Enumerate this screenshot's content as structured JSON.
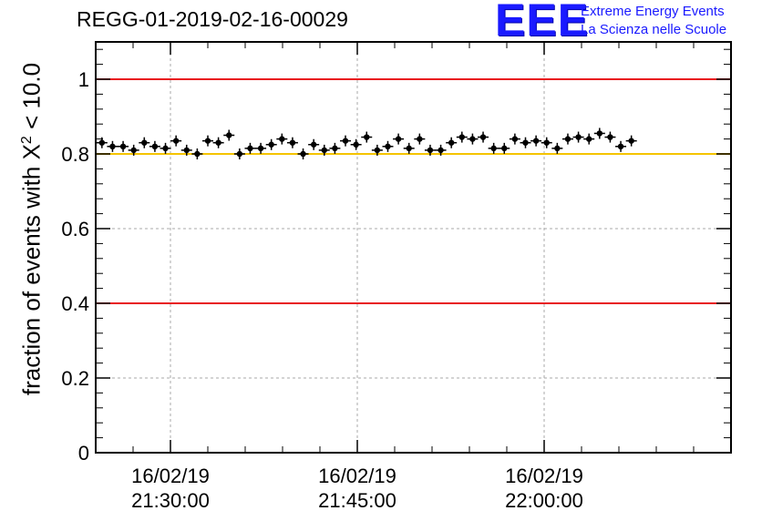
{
  "title": "REGG-01-2019-02-16-00029",
  "logo": {
    "mark": "EEE",
    "line1": "Extreme Energy Events",
    "line2": "La Scienza nelle Scuole"
  },
  "chart_data": {
    "type": "scatter",
    "ylabel_prefix": "fraction of events with X",
    "ylabel_sup": "2",
    "ylabel_suffix": " < 10.0",
    "ylim": [
      0,
      1.1
    ],
    "yticks": [
      0,
      0.2,
      0.4,
      0.6,
      0.8,
      1
    ],
    "ytick_labels": [
      "0",
      "0.2",
      "0.4",
      "0.6",
      "0.8",
      "1"
    ],
    "xlim": [
      "16/02/19 21:24:00",
      "16/02/19 22:15:00"
    ],
    "xticks": [
      {
        "date": "16/02/19",
        "time": "21:30:00"
      },
      {
        "date": "16/02/19",
        "time": "21:45:00"
      },
      {
        "date": "16/02/19",
        "time": "22:00:00"
      }
    ],
    "grid": true,
    "reference_lines": [
      {
        "y": 1.0,
        "color": "#e8141c"
      },
      {
        "y": 0.4,
        "color": "#e8141c"
      },
      {
        "y": 0.8,
        "color": "#f5c400"
      }
    ],
    "points": {
      "color": "#000000",
      "x_start": "16/02/19 21:24:30",
      "x_step_minutes": 0.85,
      "y": [
        0.83,
        0.82,
        0.82,
        0.81,
        0.83,
        0.82,
        0.815,
        0.835,
        0.81,
        0.8,
        0.835,
        0.83,
        0.85,
        0.8,
        0.815,
        0.815,
        0.825,
        0.84,
        0.83,
        0.8,
        0.825,
        0.81,
        0.815,
        0.835,
        0.825,
        0.845,
        0.81,
        0.82,
        0.84,
        0.815,
        0.84,
        0.81,
        0.81,
        0.83,
        0.845,
        0.84,
        0.845,
        0.815,
        0.815,
        0.84,
        0.83,
        0.835,
        0.83,
        0.815,
        0.84,
        0.845,
        0.84,
        0.855,
        0.845,
        0.82,
        0.835
      ]
    }
  }
}
